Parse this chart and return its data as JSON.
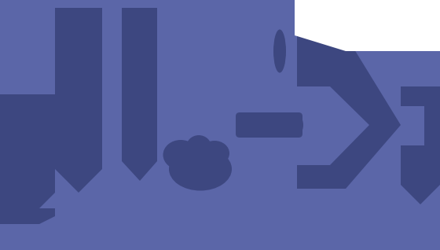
{
  "bg_color": "#5b66a8",
  "dark_color": "#3d4780",
  "fig_width": 5.6,
  "fig_height": 3.18,
  "dpi": 100
}
